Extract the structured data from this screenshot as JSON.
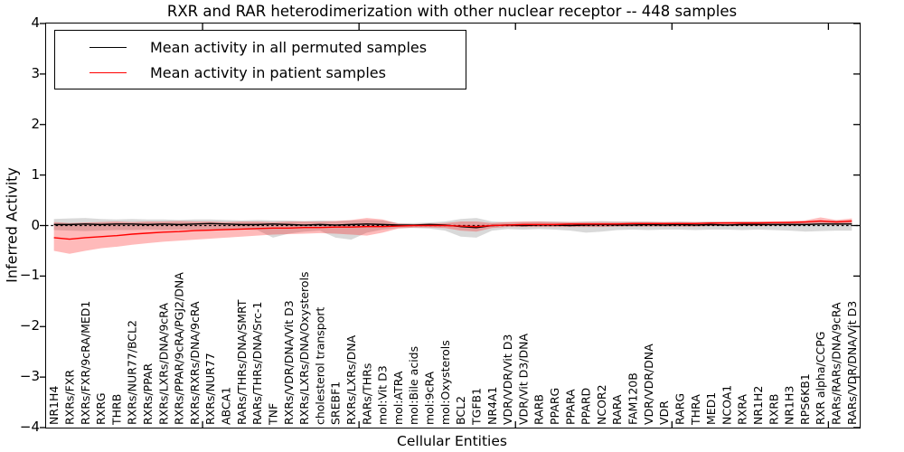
{
  "title": "RXR and RAR heterodimerization with other nuclear receptor -- 448 samples",
  "legend": {
    "items": [
      {
        "label": "Mean activity in all permuted samples",
        "color": "#000000"
      },
      {
        "label": "Mean activity in patient samples",
        "color": "#ff0000"
      }
    ]
  },
  "axes": {
    "ylabel": "Inferred Activity",
    "xlabel": "Cellular Entities",
    "ytick_labels": [
      "4",
      "3",
      "2",
      "1",
      "0",
      "−1",
      "−2",
      "−3",
      "−4"
    ],
    "ytick_values": [
      4,
      3,
      2,
      1,
      0,
      -1,
      -2,
      -3,
      -4
    ]
  },
  "colors": {
    "permuted_line": "#000000",
    "patient_line": "#ff0000",
    "permuted_band": "#000000",
    "permuted_band_alpha": 0.15,
    "patient_band": "#ff0000",
    "patient_band_alpha": 0.27,
    "zero_line": "#000000",
    "spine": "#000000"
  },
  "chart_data": {
    "type": "line",
    "title": "RXR and RAR heterodimerization with other nuclear receptor -- 448 samples",
    "xlabel": "Cellular Entities",
    "ylabel": "Inferred Activity",
    "ylim": [
      -4,
      4
    ],
    "grid": false,
    "legend_position": "upper left",
    "zero_reference_line": true,
    "x_major_tick_positions": [
      9.5,
      19.5,
      29.5,
      39.5,
      49.5
    ],
    "categories": [
      "NR1H4",
      "RXRs/FXR",
      "RXRs/FXR/9cRA/MED1",
      "RXRG",
      "THRB",
      "RXRs/NUR77/BCL2",
      "RXRs/PPAR",
      "RXRs/LXRs/DNA/9cRA",
      "RXRs/PPAR/9cRA/PGJ2/DNA",
      "RXRs/RXRs/DNA/9cRA",
      "RXRs/NUR77",
      "ABCA1",
      "RARs/THRs/DNA/SMRT",
      "RARs/THRs/DNA/Src-1",
      "TNF",
      "RXRs/VDR/DNA/Vit D3",
      "RXRs/LXRs/DNA/Oxysterols",
      "cholesterol transport",
      "SREBF1",
      "RXRs/LXRs/DNA",
      "RARs/THRs",
      "mol:Vit D3",
      "mol:ATRA",
      "mol:Bile acids",
      "mol:9cRA",
      "mol:Oxysterols",
      "BCL2",
      "TGFB1",
      "NR4A1",
      "VDR/VDR/Vit D3",
      "VDR/Vit D3/DNA",
      "RARB",
      "PPARG",
      "PPARA",
      "PPARD",
      "NCOR2",
      "RARA",
      "FAM120B",
      "VDR/VDR/DNA",
      "VDR",
      "RARG",
      "THRA",
      "MED1",
      "NCOA1",
      "RXRA",
      "NR1H2",
      "RXRB",
      "NR1H3",
      "RPS6KB1",
      "RXR alpha/CCPG",
      "RARs/RARs/DNA/9cRA",
      "RARs/VDR/DNA/Vit D3"
    ],
    "series": [
      {
        "name": "Mean activity in all permuted samples",
        "color": "#000000",
        "values": [
          0.02,
          0.02,
          0.03,
          0.02,
          0.03,
          0.03,
          0.02,
          0.03,
          0.02,
          0.03,
          0.04,
          0.03,
          0.02,
          0.02,
          0.03,
          0.02,
          0.01,
          0.02,
          0.01,
          0.02,
          0.03,
          0.02,
          0.01,
          0.01,
          0.02,
          0.01,
          -0.02,
          -0.04,
          0.0,
          0.01,
          0.0,
          0.01,
          0.01,
          0.0,
          0.01,
          0.02,
          0.01,
          0.01,
          0.02,
          0.01,
          0.02,
          0.01,
          0.02,
          0.01,
          0.02,
          0.02,
          0.02,
          0.02,
          0.02,
          0.03,
          0.03,
          0.03
        ],
        "band_upper": [
          0.13,
          0.14,
          0.15,
          0.13,
          0.12,
          0.13,
          0.12,
          0.12,
          0.11,
          0.12,
          0.12,
          0.11,
          0.1,
          0.11,
          0.1,
          0.1,
          0.09,
          0.1,
          0.09,
          0.1,
          0.11,
          0.1,
          0.05,
          0.05,
          0.06,
          0.08,
          0.13,
          0.15,
          0.08,
          0.07,
          0.07,
          0.08,
          0.08,
          0.07,
          0.08,
          0.09,
          0.08,
          0.08,
          0.08,
          0.07,
          0.08,
          0.07,
          0.08,
          0.07,
          0.08,
          0.08,
          0.07,
          0.08,
          0.08,
          0.09,
          0.1,
          0.08
        ],
        "band_lower": [
          -0.09,
          -0.1,
          -0.11,
          -0.1,
          -0.09,
          -0.09,
          -0.08,
          -0.09,
          -0.08,
          -0.08,
          -0.09,
          -0.08,
          -0.08,
          -0.09,
          -0.24,
          -0.16,
          -0.12,
          -0.1,
          -0.24,
          -0.28,
          -0.14,
          -0.08,
          -0.05,
          -0.05,
          -0.06,
          -0.1,
          -0.22,
          -0.24,
          -0.1,
          -0.07,
          -0.08,
          -0.07,
          -0.08,
          -0.1,
          -0.14,
          -0.12,
          -0.09,
          -0.08,
          -0.09,
          -0.08,
          -0.08,
          -0.09,
          -0.08,
          -0.08,
          -0.09,
          -0.08,
          -0.09,
          -0.1,
          -0.12,
          -0.11,
          -0.1,
          -0.1
        ]
      },
      {
        "name": "Mean activity in patient samples",
        "color": "#ff0000",
        "values": [
          -0.24,
          -0.27,
          -0.24,
          -0.22,
          -0.2,
          -0.17,
          -0.15,
          -0.13,
          -0.12,
          -0.1,
          -0.09,
          -0.08,
          -0.07,
          -0.06,
          -0.05,
          -0.05,
          -0.04,
          -0.04,
          -0.03,
          -0.03,
          -0.02,
          -0.02,
          -0.01,
          0.0,
          0.0,
          0.0,
          -0.01,
          -0.02,
          0.0,
          0.01,
          0.02,
          0.02,
          0.02,
          0.03,
          0.03,
          0.03,
          0.03,
          0.04,
          0.04,
          0.04,
          0.04,
          0.04,
          0.05,
          0.05,
          0.05,
          0.05,
          0.06,
          0.06,
          0.07,
          0.09,
          0.07,
          0.09
        ],
        "band_upper": [
          0.07,
          0.05,
          0.06,
          0.07,
          0.08,
          0.07,
          0.08,
          0.08,
          0.09,
          0.08,
          0.08,
          0.07,
          0.08,
          0.08,
          0.07,
          0.08,
          0.08,
          0.08,
          0.09,
          0.11,
          0.15,
          0.12,
          0.04,
          0.03,
          0.04,
          0.05,
          0.08,
          0.08,
          0.05,
          0.07,
          0.08,
          0.08,
          0.07,
          0.07,
          0.07,
          0.07,
          0.07,
          0.07,
          0.07,
          0.07,
          0.07,
          0.07,
          0.07,
          0.08,
          0.08,
          0.08,
          0.08,
          0.09,
          0.1,
          0.16,
          0.11,
          0.14
        ],
        "band_lower": [
          -0.5,
          -0.56,
          -0.5,
          -0.45,
          -0.42,
          -0.38,
          -0.35,
          -0.32,
          -0.3,
          -0.28,
          -0.26,
          -0.24,
          -0.22,
          -0.2,
          -0.18,
          -0.17,
          -0.16,
          -0.15,
          -0.16,
          -0.18,
          -0.2,
          -0.14,
          -0.06,
          -0.04,
          -0.04,
          -0.05,
          -0.1,
          -0.12,
          -0.05,
          -0.03,
          -0.03,
          -0.03,
          -0.03,
          -0.03,
          -0.03,
          -0.03,
          -0.02,
          -0.02,
          -0.02,
          -0.02,
          -0.02,
          -0.02,
          -0.01,
          -0.01,
          -0.01,
          -0.01,
          0.0,
          0.0,
          0.01,
          0.02,
          0.01,
          0.02
        ]
      }
    ]
  }
}
